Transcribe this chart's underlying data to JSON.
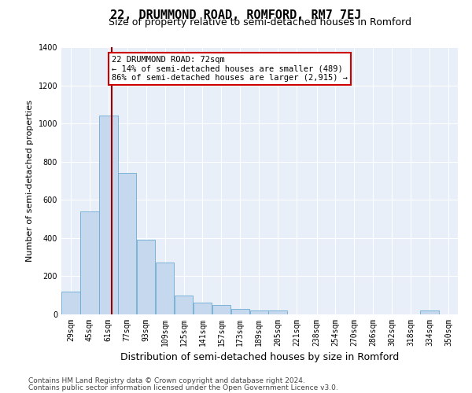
{
  "title": "22, DRUMMOND ROAD, ROMFORD, RM7 7EJ",
  "subtitle": "Size of property relative to semi-detached houses in Romford",
  "xlabel": "Distribution of semi-detached houses by size in Romford",
  "ylabel": "Number of semi-detached properties",
  "footer_line1": "Contains HM Land Registry data © Crown copyright and database right 2024.",
  "footer_line2": "Contains public sector information licensed under the Open Government Licence v3.0.",
  "annotation_line1": "22 DRUMMOND ROAD: 72sqm",
  "annotation_line2": "← 14% of semi-detached houses are smaller (489)",
  "annotation_line3": "86% of semi-detached houses are larger (2,915) →",
  "property_sqm": 72,
  "bin_labels": [
    "29sqm",
    "45sqm",
    "61sqm",
    "77sqm",
    "93sqm",
    "109sqm",
    "125sqm",
    "141sqm",
    "157sqm",
    "173sqm",
    "189sqm",
    "205sqm",
    "221sqm",
    "238sqm",
    "254sqm",
    "270sqm",
    "286sqm",
    "302sqm",
    "318sqm",
    "334sqm",
    "350sqm"
  ],
  "bin_left_edges": [
    29,
    45,
    61,
    77,
    93,
    109,
    125,
    141,
    157,
    173,
    189,
    205,
    221,
    238,
    254,
    270,
    286,
    302,
    318,
    334,
    350
  ],
  "bar_heights": [
    120,
    540,
    1040,
    740,
    390,
    270,
    100,
    60,
    50,
    30,
    20,
    20,
    0,
    0,
    0,
    0,
    0,
    0,
    0,
    20,
    0
  ],
  "bar_color": "#c5d8ee",
  "bar_edge_color": "#6aabd2",
  "vline_color": "#990000",
  "annotation_box_color": "#cc0000",
  "fig_background": "#ffffff",
  "plot_background": "#e8eff8",
  "grid_color": "#ffffff",
  "ylim": [
    0,
    1400
  ],
  "yticks": [
    0,
    200,
    400,
    600,
    800,
    1000,
    1200,
    1400
  ],
  "title_fontsize": 11,
  "subtitle_fontsize": 9,
  "xlabel_fontsize": 9,
  "ylabel_fontsize": 8,
  "tick_fontsize": 7,
  "annotation_fontsize": 7.5,
  "footer_fontsize": 6.5
}
